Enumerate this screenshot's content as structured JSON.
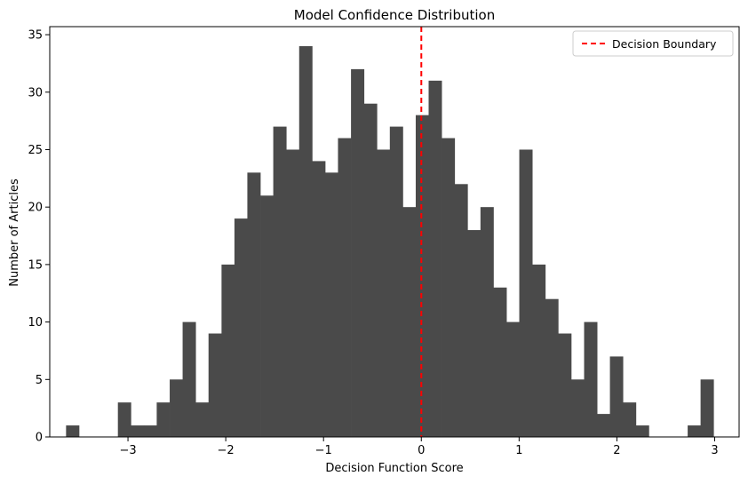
{
  "chart_data": {
    "type": "bar",
    "title": "Model Confidence Distribution",
    "xlabel": "Decision Function Score",
    "ylabel": "Number of Articles",
    "xlim": [
      -3.8,
      3.25
    ],
    "ylim": [
      0,
      35.7
    ],
    "bin_width": 0.1324,
    "bins": [
      {
        "x": -3.567,
        "count": 1
      },
      {
        "x": -3.434,
        "count": 0
      },
      {
        "x": -3.302,
        "count": 0
      },
      {
        "x": -3.169,
        "count": 0
      },
      {
        "x": -3.037,
        "count": 3
      },
      {
        "x": -2.904,
        "count": 1
      },
      {
        "x": -2.772,
        "count": 1
      },
      {
        "x": -2.64,
        "count": 3
      },
      {
        "x": -2.507,
        "count": 5
      },
      {
        "x": -2.375,
        "count": 10
      },
      {
        "x": -2.242,
        "count": 3
      },
      {
        "x": -2.11,
        "count": 9
      },
      {
        "x": -1.977,
        "count": 15
      },
      {
        "x": -1.845,
        "count": 19
      },
      {
        "x": -1.713,
        "count": 23
      },
      {
        "x": -1.58,
        "count": 21
      },
      {
        "x": -1.448,
        "count": 27
      },
      {
        "x": -1.315,
        "count": 25
      },
      {
        "x": -1.183,
        "count": 34
      },
      {
        "x": -1.05,
        "count": 24
      },
      {
        "x": -0.918,
        "count": 23
      },
      {
        "x": -0.786,
        "count": 26
      },
      {
        "x": -0.653,
        "count": 32
      },
      {
        "x": -0.521,
        "count": 29
      },
      {
        "x": -0.388,
        "count": 25
      },
      {
        "x": -0.256,
        "count": 27
      },
      {
        "x": -0.123,
        "count": 20
      },
      {
        "x": 0.009,
        "count": 28
      },
      {
        "x": 0.141,
        "count": 31
      },
      {
        "x": 0.274,
        "count": 26
      },
      {
        "x": 0.406,
        "count": 22
      },
      {
        "x": 0.539,
        "count": 18
      },
      {
        "x": 0.671,
        "count": 20
      },
      {
        "x": 0.804,
        "count": 13
      },
      {
        "x": 0.936,
        "count": 10
      },
      {
        "x": 1.068,
        "count": 25
      },
      {
        "x": 1.201,
        "count": 15
      },
      {
        "x": 1.333,
        "count": 12
      },
      {
        "x": 1.466,
        "count": 9
      },
      {
        "x": 1.598,
        "count": 5
      },
      {
        "x": 1.731,
        "count": 10
      },
      {
        "x": 1.863,
        "count": 2
      },
      {
        "x": 1.995,
        "count": 7
      },
      {
        "x": 2.128,
        "count": 3
      },
      {
        "x": 2.26,
        "count": 1
      },
      {
        "x": 2.393,
        "count": 0
      },
      {
        "x": 2.525,
        "count": 0
      },
      {
        "x": 2.658,
        "count": 0
      },
      {
        "x": 2.79,
        "count": 1
      },
      {
        "x": 2.922,
        "count": 5
      }
    ],
    "xticks": [
      -3,
      -2,
      -1,
      0,
      1,
      2,
      3
    ],
    "xtick_labels": [
      "−3",
      "−2",
      "−1",
      "0",
      "1",
      "2",
      "3"
    ],
    "yticks": [
      0,
      5,
      10,
      15,
      20,
      25,
      30,
      35
    ],
    "ytick_labels": [
      "0",
      "5",
      "10",
      "15",
      "20",
      "25",
      "30",
      "35"
    ],
    "bar_color": "#4a4a4a",
    "reference_line": {
      "x": 0,
      "label": "Decision Boundary",
      "color": "#ff0000",
      "style": "dashed"
    },
    "legend": {
      "position": "top-right",
      "entries": [
        "Decision Boundary"
      ]
    },
    "grid": false
  }
}
